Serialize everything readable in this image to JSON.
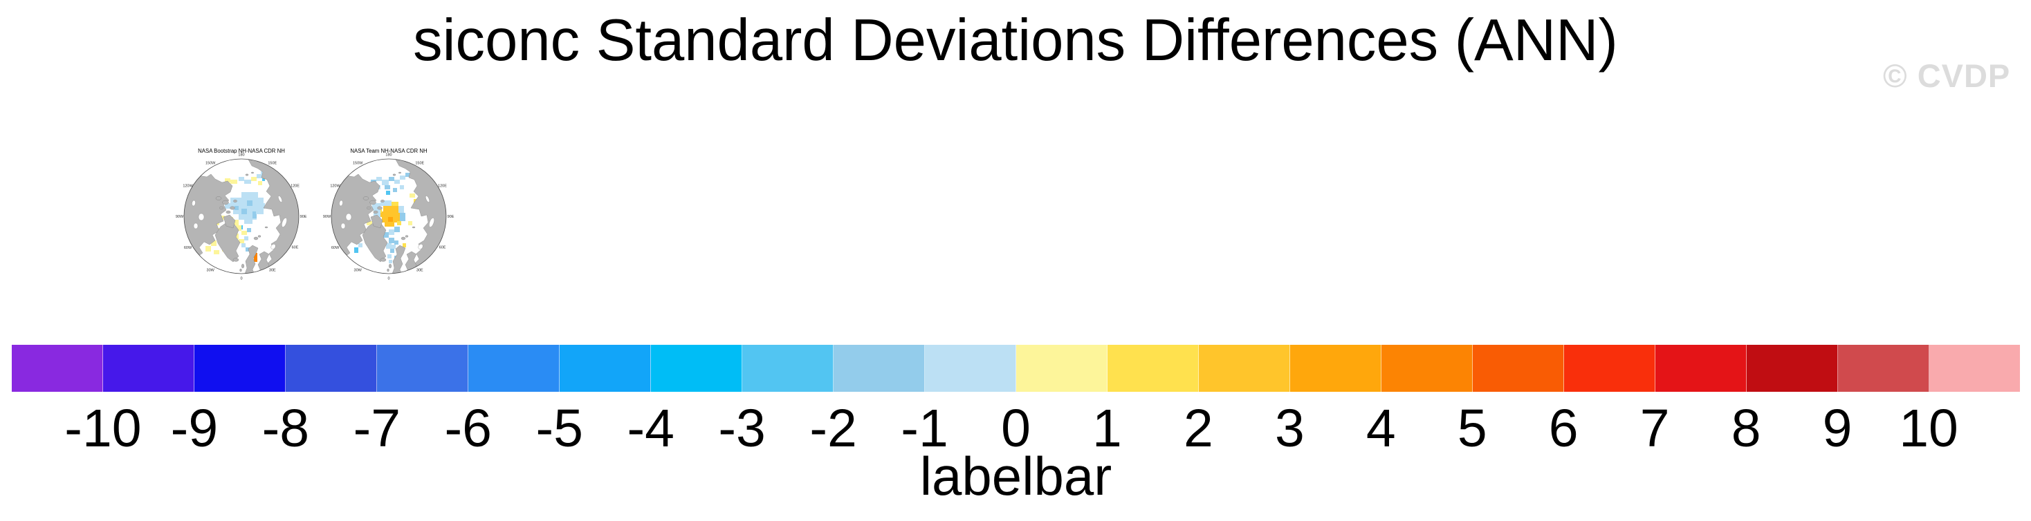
{
  "page": {
    "title": "siconc Standard Deviations Differences (ANN)",
    "watermark": "© CVDP"
  },
  "palette": {
    "land": "#b5b5b5",
    "land_stroke": "#747474",
    "watermark": "#dcdcdc",
    "paleblue": "#bce0f4",
    "midblue": "#93cceb",
    "skyblue": "#52c5f2",
    "paleyellow": "#fdf59a",
    "yellow": "#ffe14e",
    "gold": "#ffc52b",
    "orange": "#ffa70c",
    "deeporange": "#fc8403"
  },
  "maps": [
    {
      "title": "NASA Bootstrap NH-NASA CDR NH",
      "patches": {
        "paleblue": [
          [
            96,
            76,
            24,
            8
          ],
          [
            80,
            84,
            48,
            8
          ],
          [
            72,
            92,
            58,
            8
          ],
          [
            84,
            100,
            44,
            8
          ],
          [
            92,
            108,
            26,
            8
          ],
          [
            100,
            116,
            12,
            6
          ],
          [
            92,
            54,
            8,
            6
          ],
          [
            100,
            58,
            10,
            6
          ],
          [
            118,
            50,
            8,
            6
          ],
          [
            124,
            46,
            6,
            6
          ],
          [
            100,
            140,
            6,
            6
          ],
          [
            96,
            150,
            6,
            6
          ]
        ],
        "midblue": [
          [
            104,
            88,
            8,
            8
          ],
          [
            96,
            100,
            8,
            8
          ],
          [
            112,
            108,
            6,
            6
          ],
          [
            104,
            128,
            6,
            6
          ],
          [
            102,
            156,
            6,
            6
          ],
          [
            86,
            96,
            6,
            6
          ],
          [
            112,
            104,
            5,
            5
          ]
        ],
        "skyblue": [
          [
            92,
            124,
            6,
            6
          ],
          [
            126,
            56,
            4,
            4
          ]
        ],
        "paleyellow": [
          [
            72,
            56,
            8,
            6
          ],
          [
            80,
            58,
            10,
            6
          ],
          [
            110,
            54,
            8,
            6
          ],
          [
            120,
            60,
            6,
            6
          ],
          [
            70,
            70,
            6,
            5
          ],
          [
            56,
            116,
            8,
            8
          ],
          [
            64,
            110,
            8,
            6
          ],
          [
            48,
            124,
            8,
            8
          ],
          [
            60,
            128,
            8,
            6
          ],
          [
            84,
            116,
            8,
            8
          ],
          [
            76,
            112,
            8,
            6
          ],
          [
            88,
            124,
            8,
            8
          ],
          [
            96,
            132,
            8,
            6
          ],
          [
            84,
            136,
            8,
            8
          ],
          [
            92,
            144,
            8,
            6
          ],
          [
            52,
            146,
            8,
            8
          ],
          [
            44,
            154,
            8,
            8
          ],
          [
            56,
            160,
            8,
            6
          ],
          [
            68,
            156,
            6,
            6
          ],
          [
            64,
            90,
            5,
            5
          ]
        ],
        "orange": [
          [
            128,
            50,
            6,
            7
          ]
        ],
        "deeporange": [
          [
            114,
            164,
            5,
            13
          ]
        ]
      }
    },
    {
      "title": "NASA Team NH-NASA CDR NH",
      "patches": {
        "gold": [
          [
            88,
            96,
            22,
            8
          ],
          [
            84,
            104,
            28,
            8
          ],
          [
            86,
            112,
            26,
            8
          ],
          [
            90,
            120,
            14,
            6
          ]
        ],
        "orange": [
          [
            95,
            112,
            7,
            7
          ]
        ],
        "yellow": [
          [
            100,
            90,
            10,
            6
          ],
          [
            80,
            98,
            6,
            8
          ],
          [
            108,
            118,
            6,
            6
          ],
          [
            132,
            86,
            6,
            6
          ],
          [
            116,
            150,
            5,
            6
          ]
        ],
        "paleyellow": [
          [
            126,
            78,
            8,
            6
          ],
          [
            124,
            118,
            6,
            6
          ],
          [
            56,
            112,
            8,
            8
          ],
          [
            64,
            118,
            8,
            6
          ],
          [
            52,
            122,
            6,
            6
          ]
        ],
        "paleblue": [
          [
            84,
            88,
            16,
            8
          ],
          [
            72,
            92,
            12,
            10
          ],
          [
            74,
            102,
            10,
            12
          ],
          [
            110,
            96,
            8,
            10
          ],
          [
            96,
            130,
            8,
            8
          ],
          [
            92,
            150,
            8,
            8
          ],
          [
            94,
            166,
            6,
            6
          ],
          [
            78,
            54,
            8,
            6
          ],
          [
            86,
            58,
            10,
            8
          ],
          [
            104,
            58,
            8,
            6
          ],
          [
            112,
            52,
            8,
            6
          ],
          [
            74,
            120,
            6,
            6
          ],
          [
            52,
            150,
            6,
            6
          ],
          [
            112,
            66,
            6,
            6
          ],
          [
            78,
            66,
            6,
            6
          ],
          [
            100,
            152,
            6,
            6
          ],
          [
            96,
            174,
            5,
            5
          ]
        ],
        "midblue": [
          [
            70,
            58,
            8,
            8
          ],
          [
            96,
            54,
            8,
            6
          ],
          [
            120,
            48,
            8,
            6
          ],
          [
            102,
            70,
            6,
            6
          ],
          [
            112,
            106,
            8,
            12
          ],
          [
            104,
            126,
            8,
            8
          ],
          [
            88,
            134,
            8,
            8
          ],
          [
            96,
            142,
            8,
            8
          ],
          [
            98,
            158,
            6,
            6
          ],
          [
            68,
            128,
            6,
            6
          ],
          [
            104,
            168,
            5,
            5
          ],
          [
            104,
            146,
            6,
            6
          ],
          [
            90,
            66,
            8,
            6
          ]
        ],
        "skyblue": [
          [
            46,
            156,
            6,
            8
          ],
          [
            92,
            74,
            6,
            6
          ]
        ]
      }
    }
  ],
  "lon_labels": [
    {
      "label": "180",
      "deg": 0
    },
    {
      "label": "150E",
      "deg": 30
    },
    {
      "label": "120E",
      "deg": 60
    },
    {
      "label": "90E",
      "deg": 90
    },
    {
      "label": "60E",
      "deg": 120
    },
    {
      "label": "30E",
      "deg": 150
    },
    {
      "label": "0",
      "deg": 180
    },
    {
      "label": "30W",
      "deg": 210
    },
    {
      "label": "60W",
      "deg": 240
    },
    {
      "label": "90W",
      "deg": 270
    },
    {
      "label": "120W",
      "deg": 300
    },
    {
      "label": "150W",
      "deg": 330
    }
  ],
  "colorbar": {
    "caption": "labelbar",
    "colors": [
      "#8929e0",
      "#4618ea",
      "#100ff0",
      "#3450de",
      "#3b72e8",
      "#2a8cf4",
      "#12a5f9",
      "#00bdf6",
      "#52c5f2",
      "#93cceb",
      "#bce0f4",
      "#fdf59a",
      "#ffe14e",
      "#ffc52b",
      "#ffa70c",
      "#fc8403",
      "#f95c04",
      "#f92f0b",
      "#e41417",
      "#c00d12",
      "#d04a4d",
      "#f9aaad"
    ],
    "tick_labels": [
      "-10",
      "-9",
      "-8",
      "-7",
      "-6",
      "-5",
      "-4",
      "-3",
      "-2",
      "-1",
      "0",
      "1",
      "2",
      "3",
      "4",
      "5",
      "6",
      "7",
      "8",
      "9",
      "10"
    ]
  },
  "chart_data": {
    "type": "heatmap",
    "title": "siconc Standard Deviations Differences (ANN)",
    "panels": [
      {
        "title": "NASA Bootstrap NH-NASA CDR NH",
        "projection": "north-polar-stereographic",
        "meridian_labels": [
          "180",
          "150E",
          "120E",
          "90E",
          "60E",
          "30E",
          "0",
          "30W",
          "60W",
          "90W",
          "120W",
          "150W"
        ]
      },
      {
        "title": "NASA Team NH-NASA CDR NH",
        "projection": "north-polar-stereographic",
        "meridian_labels": [
          "180",
          "150E",
          "120E",
          "90E",
          "60E",
          "30E",
          "0",
          "30W",
          "60W",
          "90W",
          "120W",
          "150W"
        ]
      }
    ],
    "colorbar": {
      "label": "labelbar",
      "levels": [
        -10,
        -9,
        -8,
        -7,
        -6,
        -5,
        -4,
        -3,
        -2,
        -1,
        0,
        1,
        2,
        3,
        4,
        5,
        6,
        7,
        8,
        9,
        10
      ],
      "colors": [
        "#8929e0",
        "#4618ea",
        "#100ff0",
        "#3450de",
        "#3b72e8",
        "#2a8cf4",
        "#12a5f9",
        "#00bdf6",
        "#52c5f2",
        "#93cceb",
        "#bce0f4",
        "#fdf59a",
        "#ffe14e",
        "#ffc52b",
        "#ffa70c",
        "#fc8403",
        "#f95c04",
        "#f92f0b",
        "#e41417",
        "#c00d12",
        "#d04a4d",
        "#f9aaad"
      ],
      "range": [
        -10,
        10
      ],
      "orientation": "horizontal",
      "position": "bottom"
    },
    "legend_position": "none",
    "grid": false
  }
}
